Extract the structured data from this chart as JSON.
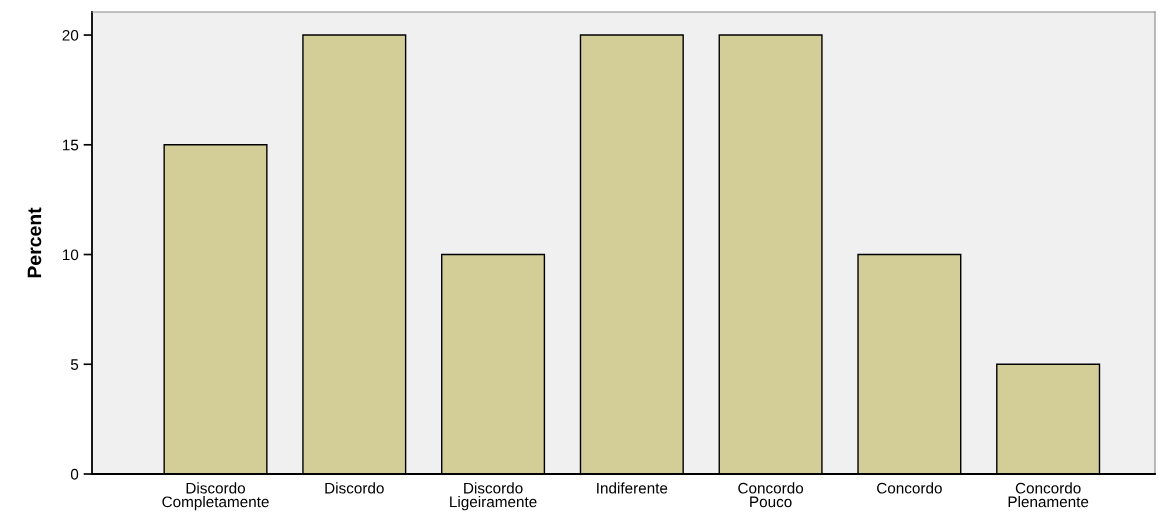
{
  "chart_data": {
    "type": "bar",
    "ylabel": "Percent",
    "categories": [
      "Discordo\nCompletamente",
      "Discordo",
      "Discordo\nLigeiramente",
      "Indiferente",
      "Concordo\nPouco",
      "Concordo",
      "Concordo\nPlenamente"
    ],
    "values": [
      15,
      20,
      10,
      20,
      20,
      10,
      5
    ],
    "color": "#d3cd97",
    "ylim": [
      0,
      21.05
    ],
    "yticks": [
      0,
      5,
      10,
      15,
      20
    ],
    "grid": false
  }
}
